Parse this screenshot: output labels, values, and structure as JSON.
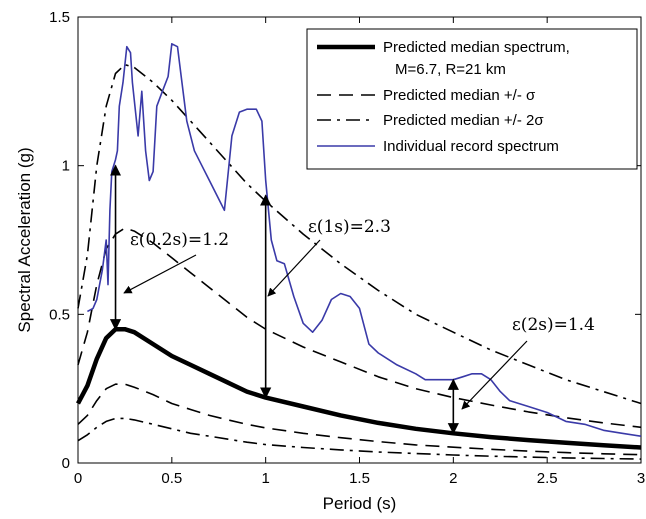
{
  "chart_data": {
    "type": "line",
    "xlabel": "Period (s)",
    "ylabel": "Spectral Acceleration (g)",
    "xlim": [
      0,
      3
    ],
    "ylim": [
      0,
      1.5
    ],
    "xticks": [
      0,
      0.5,
      1,
      1.5,
      2,
      2.5,
      3
    ],
    "xtick_labels": [
      "0",
      "0.5",
      "1",
      "1.5",
      "2",
      "2.5",
      "3"
    ],
    "yticks": [
      0,
      0.5,
      1,
      1.5
    ],
    "ytick_labels": [
      "0",
      "0.5",
      "1",
      "1.5"
    ],
    "grid": false,
    "legend_position": "top-right",
    "legend": [
      {
        "series_key": "median",
        "label": "Predicted median spectrum,",
        "label2": "M=6.7, R=21 km"
      },
      {
        "series_key": "sigma",
        "label": "Predicted median +/- σ"
      },
      {
        "series_key": "twosigma",
        "label": "Predicted median +/- 2σ"
      },
      {
        "series_key": "record",
        "label": "Individual record spectrum"
      }
    ],
    "series": [
      {
        "key": "median",
        "style": "solid-thick",
        "color": "#000000",
        "x": [
          0,
          0.05,
          0.1,
          0.15,
          0.2,
          0.25,
          0.3,
          0.4,
          0.5,
          0.6,
          0.7,
          0.8,
          0.9,
          1.0,
          1.2,
          1.4,
          1.6,
          1.8,
          2.0,
          2.2,
          2.4,
          2.6,
          2.8,
          3.0
        ],
        "y": [
          0.2,
          0.26,
          0.35,
          0.42,
          0.45,
          0.45,
          0.44,
          0.4,
          0.36,
          0.33,
          0.3,
          0.27,
          0.24,
          0.22,
          0.19,
          0.16,
          0.135,
          0.115,
          0.1,
          0.087,
          0.077,
          0.068,
          0.06,
          0.052
        ]
      },
      {
        "key": "sigma_upper",
        "style": "dashed",
        "color": "#000000",
        "x": [
          0,
          0.05,
          0.1,
          0.15,
          0.2,
          0.25,
          0.3,
          0.4,
          0.5,
          0.6,
          0.7,
          0.8,
          0.9,
          1.0,
          1.2,
          1.4,
          1.6,
          1.8,
          2.0,
          2.2,
          2.4,
          2.6,
          2.8,
          3.0
        ],
        "y": [
          0.33,
          0.44,
          0.6,
          0.72,
          0.77,
          0.79,
          0.78,
          0.74,
          0.69,
          0.64,
          0.59,
          0.54,
          0.49,
          0.45,
          0.39,
          0.34,
          0.29,
          0.25,
          0.22,
          0.195,
          0.172,
          0.152,
          0.135,
          0.12
        ]
      },
      {
        "key": "sigma_lower",
        "style": "dashed",
        "color": "#000000",
        "x": [
          0,
          0.05,
          0.1,
          0.15,
          0.2,
          0.25,
          0.3,
          0.4,
          0.5,
          0.6,
          0.7,
          0.8,
          0.9,
          1.0,
          1.2,
          1.4,
          1.6,
          1.8,
          2.0,
          2.2,
          2.4,
          2.6,
          2.8,
          3.0
        ],
        "y": [
          0.13,
          0.16,
          0.21,
          0.25,
          0.265,
          0.265,
          0.255,
          0.23,
          0.2,
          0.18,
          0.16,
          0.145,
          0.13,
          0.118,
          0.1,
          0.085,
          0.072,
          0.061,
          0.053,
          0.046,
          0.04,
          0.035,
          0.031,
          0.028
        ]
      },
      {
        "key": "twosigma_upper",
        "style": "dashdot",
        "color": "#000000",
        "x": [
          0,
          0.05,
          0.1,
          0.15,
          0.2,
          0.25,
          0.3,
          0.4,
          0.5,
          0.6,
          0.7,
          0.8,
          0.9,
          1.0,
          1.2,
          1.4,
          1.6,
          1.8,
          2.0,
          2.2,
          2.4,
          2.6,
          2.8,
          3.0
        ],
        "y": [
          0.52,
          0.7,
          1.0,
          1.2,
          1.31,
          1.34,
          1.33,
          1.28,
          1.22,
          1.15,
          1.08,
          1.01,
          0.94,
          0.88,
          0.77,
          0.67,
          0.58,
          0.5,
          0.44,
          0.38,
          0.33,
          0.28,
          0.24,
          0.2
        ]
      },
      {
        "key": "twosigma_lower",
        "style": "dashdot",
        "color": "#000000",
        "x": [
          0,
          0.05,
          0.1,
          0.15,
          0.2,
          0.25,
          0.3,
          0.4,
          0.5,
          0.6,
          0.7,
          0.8,
          0.9,
          1.0,
          1.2,
          1.4,
          1.6,
          1.8,
          2.0,
          2.2,
          2.4,
          2.6,
          2.8,
          3.0
        ],
        "y": [
          0.075,
          0.095,
          0.12,
          0.14,
          0.15,
          0.15,
          0.145,
          0.13,
          0.115,
          0.1,
          0.09,
          0.08,
          0.07,
          0.062,
          0.052,
          0.044,
          0.037,
          0.032,
          0.027,
          0.023,
          0.02,
          0.017,
          0.015,
          0.013
        ]
      },
      {
        "key": "record",
        "style": "solid",
        "color": "#3a3aa8",
        "x": [
          0.05,
          0.08,
          0.1,
          0.13,
          0.15,
          0.16,
          0.17,
          0.18,
          0.2,
          0.21,
          0.22,
          0.24,
          0.26,
          0.28,
          0.29,
          0.3,
          0.32,
          0.34,
          0.36,
          0.38,
          0.4,
          0.42,
          0.45,
          0.48,
          0.5,
          0.53,
          0.55,
          0.58,
          0.62,
          0.66,
          0.7,
          0.74,
          0.78,
          0.82,
          0.86,
          0.9,
          0.95,
          0.98,
          1.0,
          1.03,
          1.06,
          1.1,
          1.15,
          1.2,
          1.25,
          1.3,
          1.35,
          1.4,
          1.45,
          1.5,
          1.55,
          1.6,
          1.7,
          1.8,
          1.85,
          1.9,
          1.95,
          2.0,
          2.05,
          2.1,
          2.15,
          2.2,
          2.25,
          2.3,
          2.4,
          2.5,
          2.6,
          2.7,
          2.8,
          2.9,
          3.0
        ],
        "y": [
          0.51,
          0.52,
          0.55,
          0.65,
          0.75,
          0.6,
          0.85,
          0.98,
          1.02,
          1.05,
          1.2,
          1.28,
          1.4,
          1.38,
          1.28,
          1.22,
          1.1,
          1.25,
          1.05,
          0.95,
          0.98,
          1.2,
          1.25,
          1.3,
          1.41,
          1.4,
          1.3,
          1.15,
          1.05,
          1.0,
          0.95,
          0.9,
          0.85,
          1.1,
          1.18,
          1.19,
          1.19,
          1.15,
          0.95,
          0.75,
          0.68,
          0.67,
          0.56,
          0.47,
          0.44,
          0.48,
          0.55,
          0.57,
          0.56,
          0.52,
          0.4,
          0.37,
          0.33,
          0.3,
          0.28,
          0.28,
          0.28,
          0.28,
          0.29,
          0.3,
          0.3,
          0.28,
          0.24,
          0.21,
          0.19,
          0.17,
          0.14,
          0.13,
          0.11,
          0.1,
          0.09
        ]
      }
    ],
    "annotations": [
      {
        "text": "ε(0.2s)=1.2",
        "arrow_x": 0.2,
        "arrow_y_from": 0.45,
        "arrow_y_to": 1.0
      },
      {
        "text": "ε(1s)=2.3",
        "arrow_x": 1.0,
        "arrow_y_from": 0.22,
        "arrow_y_to": 0.9
      },
      {
        "text": "ε(2s)=1.4",
        "arrow_x": 2.0,
        "arrow_y_from": 0.1,
        "arrow_y_to": 0.28
      }
    ]
  }
}
